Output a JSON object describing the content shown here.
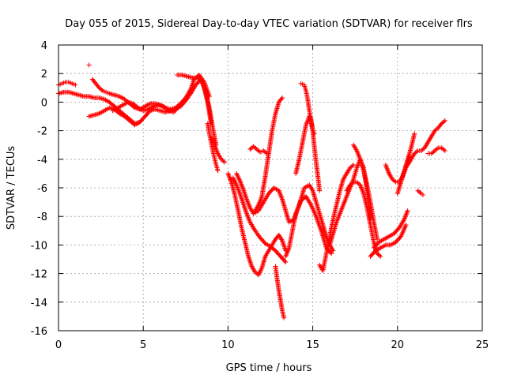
{
  "chart_data": {
    "type": "scatter",
    "title": "Day 055 of 2015, Sidereal Day-to-day VTEC variation (SDTVAR) for receiver flrs",
    "xlabel": "GPS time / hours",
    "ylabel": "SDTVAR / TECUs",
    "xlim": [
      0,
      25
    ],
    "ylim": [
      -16,
      4
    ],
    "xticks": [
      0,
      5,
      10,
      15,
      20,
      25
    ],
    "yticks": [
      -16,
      -14,
      -12,
      -10,
      -8,
      -6,
      -4,
      -2,
      0,
      2,
      4
    ],
    "grid": true,
    "legend": "none",
    "marker": "+",
    "color": "#ff0000",
    "series": [
      {
        "x": [
          0.0,
          0.3,
          0.6,
          0.9,
          1.2,
          1.5,
          1.8,
          2.1,
          2.4,
          2.7,
          3.0,
          3.3,
          3.6,
          3.9,
          4.2,
          4.5,
          4.8,
          5.1,
          5.4,
          5.7,
          6.0,
          6.3,
          6.6,
          6.9,
          7.2,
          7.5,
          7.8,
          8.1,
          8.4,
          8.6,
          8.8,
          9.0
        ],
        "y": [
          0.6,
          0.7,
          0.7,
          0.6,
          0.5,
          0.4,
          0.4,
          0.3,
          0.3,
          0.2,
          0.0,
          -0.3,
          -0.6,
          -0.9,
          -1.2,
          -1.5,
          -1.4,
          -1.0,
          -0.6,
          -0.5,
          -0.6,
          -0.7,
          -0.6,
          -0.5,
          -0.3,
          0.1,
          0.6,
          1.2,
          1.6,
          1.0,
          0.0,
          -1.5
        ]
      },
      {
        "x": [
          0.0,
          0.2,
          0.4,
          0.6,
          0.8,
          1.0
        ],
        "y": [
          1.2,
          1.3,
          1.4,
          1.4,
          1.3,
          1.2
        ]
      },
      {
        "x": [
          1.8,
          2.1,
          2.4,
          2.7,
          3.0,
          3.3,
          3.6,
          3.9,
          4.2,
          4.5,
          4.8
        ],
        "y": [
          -1.0,
          -0.9,
          -0.8,
          -0.6,
          -0.4,
          -0.5,
          -0.8,
          -1.0,
          -1.3,
          -1.6,
          -1.4
        ]
      },
      {
        "x": [
          2.0,
          2.2,
          2.4,
          2.6,
          2.8,
          3.0,
          3.3,
          3.6,
          3.9,
          4.2,
          4.5,
          4.8,
          5.1,
          5.4,
          5.7,
          6.0,
          6.3,
          6.6,
          6.9,
          7.2,
          7.5,
          7.8,
          8.0,
          8.3,
          8.6,
          8.9
        ],
        "y": [
          1.6,
          1.3,
          1.0,
          0.8,
          0.7,
          0.6,
          0.5,
          0.4,
          0.2,
          -0.1,
          -0.4,
          -0.5,
          -0.3,
          -0.1,
          -0.1,
          -0.2,
          -0.4,
          -0.5,
          -0.4,
          -0.1,
          0.3,
          0.9,
          1.6,
          1.9,
          1.4,
          0.4
        ]
      },
      {
        "x": [
          3.2,
          3.5,
          3.8,
          4.1,
          4.4,
          4.7,
          5.0,
          5.3,
          5.6,
          5.9,
          6.2,
          6.5,
          6.8,
          7.1
        ],
        "y": [
          -0.6,
          -0.4,
          -0.2,
          0.0,
          -0.1,
          -0.4,
          -0.6,
          -0.5,
          -0.3,
          -0.2,
          -0.3,
          -0.6,
          -0.7,
          -0.3
        ]
      },
      {
        "x": [
          7.0,
          7.3,
          7.6,
          7.9,
          8.2,
          8.5,
          8.7,
          8.9,
          9.1,
          9.3
        ],
        "y": [
          1.9,
          1.9,
          1.8,
          1.7,
          1.7,
          1.4,
          0.6,
          -0.4,
          -1.8,
          -3.0
        ]
      },
      {
        "x": [
          8.8,
          8.9,
          9.0,
          9.1,
          9.2,
          9.3,
          9.4
        ],
        "y": [
          -1.5,
          -2.2,
          -2.8,
          -3.4,
          -3.9,
          -4.4,
          -4.8
        ]
      },
      {
        "x": [
          9.0,
          9.2,
          9.4,
          9.6,
          9.8
        ],
        "y": [
          -2.5,
          -3.0,
          -3.6,
          -4.0,
          -4.2
        ]
      },
      {
        "x": [
          10.0,
          10.2,
          10.4,
          10.6,
          10.8,
          11.0,
          11.2,
          11.4,
          11.6,
          11.8,
          12.0,
          12.2,
          12.5,
          12.8,
          13.0,
          13.2,
          13.4
        ],
        "y": [
          -5.0,
          -5.6,
          -6.5,
          -7.6,
          -8.8,
          -9.8,
          -10.8,
          -11.5,
          -11.9,
          -12.1,
          -11.6,
          -10.8,
          -10.2,
          -9.6,
          -9.3,
          -9.7,
          -10.4
        ]
      },
      {
        "x": [
          10.3,
          10.5,
          10.7,
          10.9,
          11.1,
          11.3,
          11.6,
          11.9,
          12.2,
          12.5,
          12.8,
          13.1,
          13.4
        ],
        "y": [
          -5.3,
          -5.8,
          -6.4,
          -7.1,
          -7.8,
          -8.4,
          -9.0,
          -9.5,
          -9.9,
          -10.1,
          -10.4,
          -10.8,
          -11.2
        ]
      },
      {
        "x": [
          10.5,
          10.7,
          10.9,
          11.1,
          11.3,
          11.5,
          11.8,
          12.1,
          12.4,
          12.7,
          13.0
        ],
        "y": [
          -5.0,
          -5.5,
          -6.1,
          -6.8,
          -7.4,
          -7.8,
          -7.6,
          -7.0,
          -6.4,
          -6.0,
          -6.2
        ]
      },
      {
        "x": [
          11.3,
          11.5,
          11.7,
          11.9,
          12.1,
          12.3
        ],
        "y": [
          -3.3,
          -3.1,
          -3.3,
          -3.5,
          -3.4,
          -3.6
        ]
      },
      {
        "x": [
          11.6,
          11.8,
          12.0,
          12.2,
          12.4,
          12.6,
          12.8,
          13.0,
          13.2
        ],
        "y": [
          -7.6,
          -7.2,
          -6.6,
          -5.2,
          -3.6,
          -2.0,
          -0.8,
          0.0,
          0.3
        ]
      },
      {
        "x": [
          12.8,
          12.9,
          13.0,
          13.1,
          13.2,
          13.3
        ],
        "y": [
          -11.5,
          -12.4,
          -13.2,
          -13.9,
          -14.6,
          -15.1
        ]
      },
      {
        "x": [
          13.0,
          13.2,
          13.4,
          13.6,
          13.9,
          14.2,
          14.5,
          14.8,
          15.0,
          15.2,
          15.4,
          15.6,
          15.8,
          16.0,
          16.2
        ],
        "y": [
          -6.2,
          -6.8,
          -7.6,
          -8.4,
          -8.2,
          -7.2,
          -6.0,
          -5.8,
          -6.2,
          -7.0,
          -7.8,
          -8.6,
          -9.4,
          -10.0,
          -10.4
        ]
      },
      {
        "x": [
          13.4,
          13.6,
          13.8,
          14.0,
          14.3,
          14.6,
          14.9,
          15.2,
          15.5,
          15.8,
          16.1
        ],
        "y": [
          -10.8,
          -10.2,
          -9.0,
          -7.8,
          -6.9,
          -6.6,
          -7.2,
          -8.0,
          -9.0,
          -10.2,
          -10.6
        ]
      },
      {
        "x": [
          14.0,
          14.2,
          14.4,
          14.6,
          14.8,
          14.9,
          15.0,
          15.1,
          15.2,
          15.3,
          15.4
        ],
        "y": [
          -5.0,
          -4.0,
          -2.8,
          -1.6,
          -1.0,
          -1.2,
          -2.0,
          -3.2,
          -4.2,
          -5.2,
          -6.2
        ]
      },
      {
        "x": [
          14.3,
          14.5,
          14.6,
          14.7,
          14.8,
          14.9,
          15.0,
          15.1
        ],
        "y": [
          1.3,
          1.2,
          0.8,
          0.2,
          -0.6,
          -1.4,
          -2.0,
          -2.2
        ]
      },
      {
        "x": [
          15.4,
          15.6,
          15.8,
          16.0,
          16.2,
          16.4,
          16.6,
          16.8,
          17.0,
          17.2,
          17.4
        ],
        "y": [
          -11.4,
          -11.8,
          -10.6,
          -9.4,
          -8.2,
          -7.2,
          -6.2,
          -5.4,
          -5.0,
          -4.6,
          -4.4
        ]
      },
      {
        "x": [
          16.0,
          16.2,
          16.4,
          16.6,
          16.8,
          17.0,
          17.2,
          17.4,
          17.6,
          17.8,
          18.0,
          18.2,
          18.4
        ],
        "y": [
          -10.0,
          -9.2,
          -8.4,
          -7.8,
          -7.2,
          -6.6,
          -6.0,
          -5.4,
          -4.6,
          -4.0,
          -4.6,
          -6.2,
          -8.2
        ]
      },
      {
        "x": [
          17.0,
          17.2,
          17.4,
          17.6,
          17.8,
          18.0,
          18.2,
          18.4,
          18.6,
          18.8,
          19.0
        ],
        "y": [
          -6.2,
          -5.8,
          -5.6,
          -5.6,
          -5.8,
          -6.4,
          -7.4,
          -8.6,
          -9.8,
          -10.6,
          -10.8
        ]
      },
      {
        "x": [
          17.4,
          17.6,
          17.8,
          18.0,
          18.2,
          18.4,
          18.6,
          18.8
        ],
        "y": [
          -3.0,
          -3.4,
          -4.0,
          -4.8,
          -5.8,
          -7.0,
          -8.4,
          -9.6
        ]
      },
      {
        "x": [
          18.6,
          18.9,
          19.2,
          19.5,
          19.8,
          20.1,
          20.4,
          20.6
        ],
        "y": [
          -10.2,
          -9.8,
          -9.6,
          -9.4,
          -9.2,
          -8.8,
          -8.2,
          -7.6
        ]
      },
      {
        "x": [
          18.4,
          18.7,
          19.0,
          19.3,
          19.6,
          19.9,
          20.2,
          20.5
        ],
        "y": [
          -10.8,
          -10.4,
          -10.2,
          -10.0,
          -10.0,
          -9.8,
          -9.4,
          -8.6
        ]
      },
      {
        "x": [
          19.3,
          19.5,
          19.7,
          19.9,
          20.1,
          20.3,
          20.5,
          20.7
        ],
        "y": [
          -4.4,
          -5.0,
          -5.4,
          -5.6,
          -5.6,
          -5.2,
          -4.6,
          -3.8
        ]
      },
      {
        "x": [
          20.0,
          20.2,
          20.4,
          20.6,
          20.8,
          21.0
        ],
        "y": [
          -6.4,
          -5.6,
          -4.8,
          -4.0,
          -3.2,
          -2.2
        ]
      },
      {
        "x": [
          20.6,
          20.8,
          21.0,
          21.2,
          21.4,
          21.6,
          21.8,
          22.0,
          22.2,
          22.4,
          22.6,
          22.8
        ],
        "y": [
          -4.4,
          -4.0,
          -3.6,
          -3.4,
          -3.4,
          -3.2,
          -2.8,
          -2.4,
          -2.0,
          -1.8,
          -1.5,
          -1.3
        ]
      },
      {
        "x": [
          21.8,
          22.0,
          22.2,
          22.4,
          22.6,
          22.8
        ],
        "y": [
          -3.6,
          -3.6,
          -3.4,
          -3.2,
          -3.2,
          -3.4
        ]
      },
      {
        "x": [
          21.2,
          21.4,
          21.5
        ],
        "y": [
          -6.2,
          -6.4,
          -6.5
        ]
      },
      {
        "x": [
          1.8
        ],
        "y": [
          2.6
        ]
      }
    ]
  }
}
